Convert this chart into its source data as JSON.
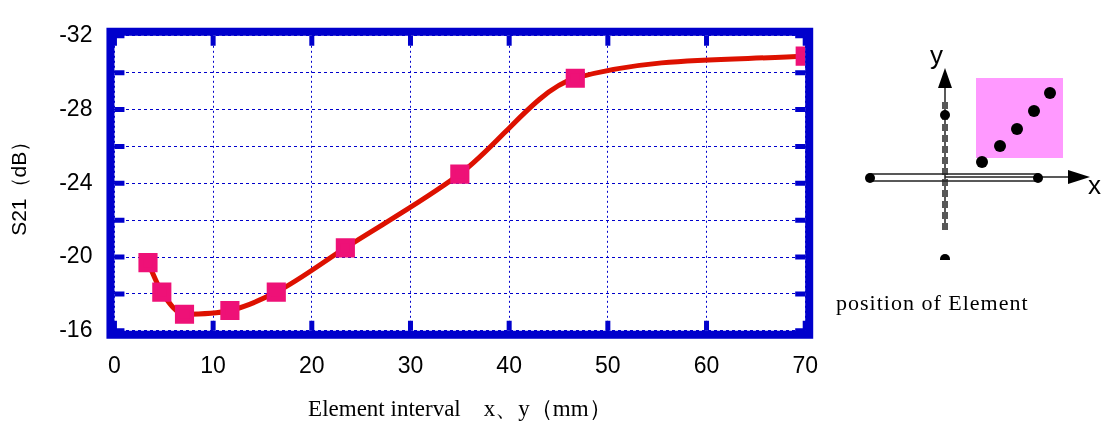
{
  "chart_data": {
    "type": "line",
    "xlabel": "Element interval　x、y（mm）",
    "ylabel": "S21（dB）",
    "x": [
      3.4,
      4.8,
      7.1,
      11.7,
      16.4,
      23.4,
      35,
      46.7,
      70
    ],
    "series": [
      {
        "color": "#dd1100",
        "colors": [
          "#ee1177",
          "#ee1177",
          "#ee1177",
          "#ee1177",
          "#ee1177",
          "#ee1177",
          "#ee1177",
          "#ee1177",
          "#ee1177"
        ],
        "values": [
          -19.7,
          -18.1,
          -16.9,
          -17.1,
          -18.1,
          -20.5,
          -24.5,
          -29.7,
          -30.9
        ]
      }
    ],
    "xlim": [
      0,
      70
    ],
    "xticks": [
      0,
      10,
      20,
      30,
      40,
      50,
      60,
      70
    ],
    "ylim": [
      -16,
      -32
    ],
    "yticks": [
      -32,
      {
        "value": -30,
        "label": null
      },
      -28,
      {
        "value": -26,
        "label": null
      },
      -24,
      {
        "value": -22,
        "label": null
      },
      -20,
      {
        "value": -18,
        "label": null
      },
      -16
    ],
    "grid": true,
    "legend": false,
    "marker": "square",
    "line_style": "solid",
    "annotations": [
      "y",
      "x",
      "position of Element"
    ]
  }
}
